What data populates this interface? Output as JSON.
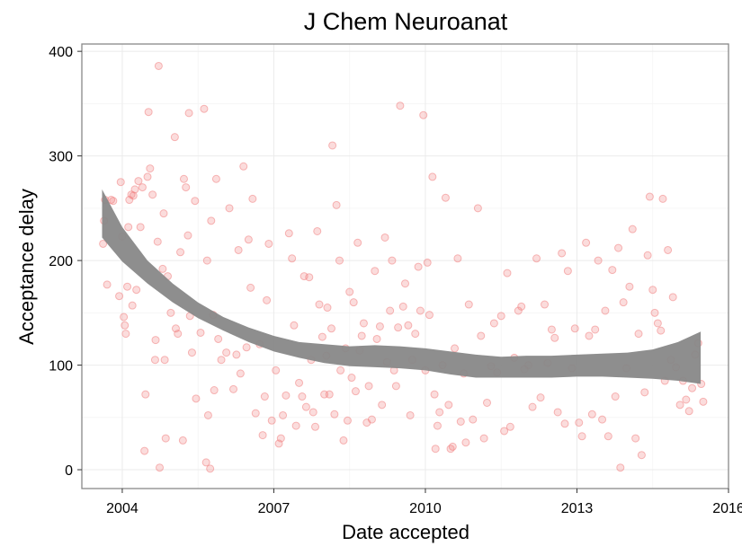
{
  "chart_data": {
    "type": "scatter",
    "title": "J Chem Neuroanat",
    "xlabel": "Date accepted",
    "ylabel": "Acceptance delay",
    "x_ticks": [
      "2004",
      "2007",
      "2010",
      "2013",
      "2016"
    ],
    "y_ticks": [
      "0",
      "100",
      "200",
      "300",
      "400"
    ],
    "xlim": [
      2003.2,
      2016.0
    ],
    "ylim": [
      -18,
      407
    ],
    "grid": true,
    "legend": "none",
    "colors": {
      "points": "#f08080",
      "smooth_band": "#888888",
      "panel_border": "#888888",
      "grid": "#ebebeb"
    },
    "smooth": {
      "x": [
        2003.6,
        2004.0,
        2004.5,
        2005.0,
        2005.5,
        2006.0,
        2006.5,
        2007.0,
        2007.5,
        2008.0,
        2008.5,
        2009.0,
        2009.5,
        2010.0,
        2010.5,
        2011.0,
        2011.5,
        2012.0,
        2012.5,
        2013.0,
        2013.5,
        2014.0,
        2014.5,
        2015.0,
        2015.45
      ],
      "lower": [
        222,
        199,
        178,
        160,
        145,
        133,
        122,
        113,
        107,
        102,
        99,
        98,
        97,
        95,
        91,
        88,
        88,
        88,
        88,
        89,
        89,
        88,
        87,
        85,
        82
      ],
      "upper": [
        268,
        232,
        200,
        178,
        160,
        146,
        136,
        128,
        122,
        120,
        118,
        119,
        118,
        116,
        113,
        110,
        108,
        109,
        109,
        110,
        111,
        112,
        115,
        122,
        132
      ]
    },
    "points": [
      [
        2003.62,
        216
      ],
      [
        2003.64,
        238
      ],
      [
        2003.66,
        258
      ],
      [
        2003.7,
        177
      ],
      [
        2003.78,
        258
      ],
      [
        2003.82,
        257
      ],
      [
        2003.94,
        166
      ],
      [
        2003.97,
        275
      ],
      [
        2004.0,
        223
      ],
      [
        2004.03,
        146
      ],
      [
        2004.05,
        138
      ],
      [
        2004.07,
        130
      ],
      [
        2004.1,
        175
      ],
      [
        2004.12,
        232
      ],
      [
        2004.14,
        258
      ],
      [
        2004.18,
        263
      ],
      [
        2004.2,
        157
      ],
      [
        2004.22,
        262
      ],
      [
        2004.25,
        268
      ],
      [
        2004.28,
        172
      ],
      [
        2004.32,
        276
      ],
      [
        2004.36,
        232
      ],
      [
        2004.4,
        270
      ],
      [
        2004.44,
        18
      ],
      [
        2004.46,
        72
      ],
      [
        2004.5,
        280
      ],
      [
        2004.52,
        342
      ],
      [
        2004.55,
        288
      ],
      [
        2004.6,
        263
      ],
      [
        2004.65,
        105
      ],
      [
        2004.66,
        124
      ],
      [
        2004.7,
        218
      ],
      [
        2004.72,
        386
      ],
      [
        2004.74,
        2
      ],
      [
        2004.8,
        192
      ],
      [
        2004.82,
        245
      ],
      [
        2004.84,
        105
      ],
      [
        2004.86,
        30
      ],
      [
        2004.9,
        185
      ],
      [
        2004.96,
        150
      ],
      [
        2005.04,
        318
      ],
      [
        2005.06,
        135
      ],
      [
        2005.1,
        130
      ],
      [
        2005.15,
        208
      ],
      [
        2005.2,
        28
      ],
      [
        2005.22,
        278
      ],
      [
        2005.26,
        270
      ],
      [
        2005.3,
        224
      ],
      [
        2005.32,
        341
      ],
      [
        2005.34,
        147
      ],
      [
        2005.38,
        112
      ],
      [
        2005.44,
        257
      ],
      [
        2005.46,
        68
      ],
      [
        2005.55,
        131
      ],
      [
        2005.62,
        345
      ],
      [
        2005.66,
        7
      ],
      [
        2005.68,
        200
      ],
      [
        2005.7,
        52
      ],
      [
        2005.74,
        1
      ],
      [
        2005.76,
        238
      ],
      [
        2005.8,
        148
      ],
      [
        2005.82,
        76
      ],
      [
        2005.86,
        278
      ],
      [
        2005.9,
        125
      ],
      [
        2005.96,
        105
      ],
      [
        2006.06,
        112
      ],
      [
        2006.12,
        250
      ],
      [
        2006.2,
        77
      ],
      [
        2006.26,
        110
      ],
      [
        2006.3,
        210
      ],
      [
        2006.34,
        92
      ],
      [
        2006.4,
        290
      ],
      [
        2006.46,
        117
      ],
      [
        2006.5,
        220
      ],
      [
        2006.54,
        174
      ],
      [
        2006.58,
        259
      ],
      [
        2006.64,
        54
      ],
      [
        2006.72,
        120
      ],
      [
        2006.78,
        33
      ],
      [
        2006.82,
        70
      ],
      [
        2006.86,
        162
      ],
      [
        2006.9,
        216
      ],
      [
        2006.96,
        47
      ],
      [
        2007.04,
        95
      ],
      [
        2007.1,
        25
      ],
      [
        2007.14,
        30
      ],
      [
        2007.18,
        52
      ],
      [
        2007.24,
        71
      ],
      [
        2007.3,
        226
      ],
      [
        2007.36,
        202
      ],
      [
        2007.4,
        138
      ],
      [
        2007.44,
        42
      ],
      [
        2007.5,
        83
      ],
      [
        2007.56,
        70
      ],
      [
        2007.6,
        185
      ],
      [
        2007.64,
        60
      ],
      [
        2007.7,
        184
      ],
      [
        2007.74,
        105
      ],
      [
        2007.78,
        55
      ],
      [
        2007.82,
        41
      ],
      [
        2007.86,
        228
      ],
      [
        2007.9,
        158
      ],
      [
        2007.96,
        127
      ],
      [
        2008.0,
        72
      ],
      [
        2008.04,
        109
      ],
      [
        2008.06,
        155
      ],
      [
        2008.1,
        72
      ],
      [
        2008.14,
        135
      ],
      [
        2008.16,
        310
      ],
      [
        2008.2,
        53
      ],
      [
        2008.24,
        253
      ],
      [
        2008.3,
        200
      ],
      [
        2008.32,
        95
      ],
      [
        2008.38,
        28
      ],
      [
        2008.42,
        116
      ],
      [
        2008.46,
        47
      ],
      [
        2008.5,
        170
      ],
      [
        2008.54,
        88
      ],
      [
        2008.58,
        160
      ],
      [
        2008.62,
        75
      ],
      [
        2008.66,
        217
      ],
      [
        2008.7,
        114
      ],
      [
        2008.74,
        128
      ],
      [
        2008.78,
        140
      ],
      [
        2008.84,
        45
      ],
      [
        2008.88,
        80
      ],
      [
        2008.94,
        48
      ],
      [
        2009.0,
        190
      ],
      [
        2009.04,
        125
      ],
      [
        2009.1,
        137
      ],
      [
        2009.14,
        62
      ],
      [
        2009.2,
        222
      ],
      [
        2009.24,
        103
      ],
      [
        2009.3,
        152
      ],
      [
        2009.34,
        200
      ],
      [
        2009.38,
        95
      ],
      [
        2009.42,
        80
      ],
      [
        2009.46,
        136
      ],
      [
        2009.5,
        348
      ],
      [
        2009.56,
        156
      ],
      [
        2009.6,
        178
      ],
      [
        2009.66,
        138
      ],
      [
        2009.7,
        52
      ],
      [
        2009.74,
        105
      ],
      [
        2009.8,
        130
      ],
      [
        2009.86,
        194
      ],
      [
        2009.9,
        152
      ],
      [
        2009.96,
        339
      ],
      [
        2010.0,
        95
      ],
      [
        2010.04,
        198
      ],
      [
        2010.08,
        148
      ],
      [
        2010.14,
        280
      ],
      [
        2010.18,
        72
      ],
      [
        2010.2,
        20
      ],
      [
        2010.24,
        42
      ],
      [
        2010.28,
        55
      ],
      [
        2010.34,
        100
      ],
      [
        2010.4,
        260
      ],
      [
        2010.46,
        62
      ],
      [
        2010.5,
        20
      ],
      [
        2010.54,
        22
      ],
      [
        2010.58,
        116
      ],
      [
        2010.64,
        202
      ],
      [
        2010.7,
        46
      ],
      [
        2010.76,
        92
      ],
      [
        2010.8,
        26
      ],
      [
        2010.86,
        158
      ],
      [
        2010.94,
        48
      ],
      [
        2011.04,
        250
      ],
      [
        2011.1,
        128
      ],
      [
        2011.16,
        30
      ],
      [
        2011.22,
        64
      ],
      [
        2011.3,
        99
      ],
      [
        2011.36,
        140
      ],
      [
        2011.42,
        93
      ],
      [
        2011.5,
        147
      ],
      [
        2011.56,
        37
      ],
      [
        2011.62,
        188
      ],
      [
        2011.68,
        41
      ],
      [
        2011.76,
        107
      ],
      [
        2011.84,
        152
      ],
      [
        2011.9,
        156
      ],
      [
        2011.96,
        96
      ],
      [
        2012.04,
        100
      ],
      [
        2012.12,
        60
      ],
      [
        2012.2,
        202
      ],
      [
        2012.28,
        69
      ],
      [
        2012.36,
        158
      ],
      [
        2012.42,
        102
      ],
      [
        2012.5,
        134
      ],
      [
        2012.56,
        126
      ],
      [
        2012.62,
        55
      ],
      [
        2012.7,
        207
      ],
      [
        2012.76,
        44
      ],
      [
        2012.82,
        190
      ],
      [
        2012.9,
        97
      ],
      [
        2012.96,
        135
      ],
      [
        2013.04,
        45
      ],
      [
        2013.1,
        32
      ],
      [
        2013.18,
        217
      ],
      [
        2013.24,
        128
      ],
      [
        2013.3,
        53
      ],
      [
        2013.36,
        134
      ],
      [
        2013.42,
        200
      ],
      [
        2013.5,
        48
      ],
      [
        2013.56,
        152
      ],
      [
        2013.62,
        32
      ],
      [
        2013.7,
        191
      ],
      [
        2013.76,
        70
      ],
      [
        2013.82,
        212
      ],
      [
        2013.86,
        2
      ],
      [
        2013.92,
        160
      ],
      [
        2013.98,
        97
      ],
      [
        2014.04,
        175
      ],
      [
        2014.1,
        230
      ],
      [
        2014.16,
        30
      ],
      [
        2014.22,
        130
      ],
      [
        2014.28,
        14
      ],
      [
        2014.34,
        74
      ],
      [
        2014.4,
        205
      ],
      [
        2014.44,
        261
      ],
      [
        2014.5,
        172
      ],
      [
        2014.54,
        150
      ],
      [
        2014.6,
        140
      ],
      [
        2014.66,
        133
      ],
      [
        2014.7,
        259
      ],
      [
        2014.74,
        85
      ],
      [
        2014.8,
        210
      ],
      [
        2014.86,
        105
      ],
      [
        2014.9,
        165
      ],
      [
        2014.96,
        98
      ],
      [
        2015.04,
        62
      ],
      [
        2015.1,
        85
      ],
      [
        2015.16,
        67
      ],
      [
        2015.22,
        56
      ],
      [
        2015.28,
        78
      ],
      [
        2015.34,
        110
      ],
      [
        2015.4,
        121
      ],
      [
        2015.46,
        82
      ],
      [
        2015.5,
        65
      ]
    ]
  }
}
